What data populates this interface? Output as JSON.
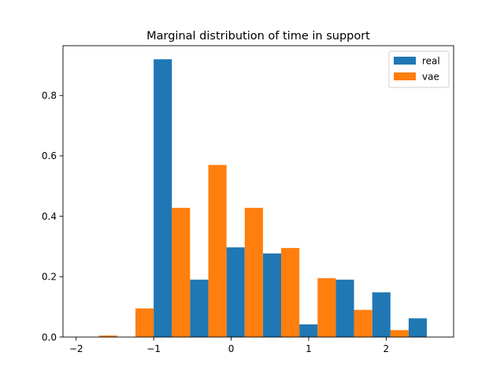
{
  "chart_data": {
    "type": "bar",
    "title": "Marginal distribution of time in support",
    "xlabel": "",
    "ylabel": "",
    "xlim": [
      -2.17,
      2.87
    ],
    "ylim": [
      0,
      0.965
    ],
    "x_ticks": [
      -2,
      -1,
      0,
      1,
      2
    ],
    "x_tick_labels": [
      "−2",
      "−1",
      "0",
      "1",
      "2"
    ],
    "y_ticks": [
      0.0,
      0.2,
      0.4,
      0.6,
      0.8
    ],
    "y_tick_labels": [
      "0.0",
      "0.2",
      "0.4",
      "0.6",
      "0.8"
    ],
    "grid": false,
    "legend_position": "top-right",
    "bin_edges": [
      -1.94,
      -1.47,
      -1.0,
      -0.53,
      -0.06,
      0.41,
      0.88,
      1.35,
      1.82,
      2.29,
      2.76
    ],
    "series": [
      {
        "name": "real",
        "color": "#1f77b4",
        "values": [
          0,
          0,
          0.92,
          0.19,
          0.297,
          0.277,
          0.042,
          0.19,
          0.148,
          0.062
        ]
      },
      {
        "name": "vae",
        "color": "#ff7f0e",
        "values": [
          0.005,
          0.095,
          0.428,
          0.57,
          0.428,
          0.295,
          0.195,
          0.09,
          0.023,
          0
        ]
      }
    ]
  }
}
